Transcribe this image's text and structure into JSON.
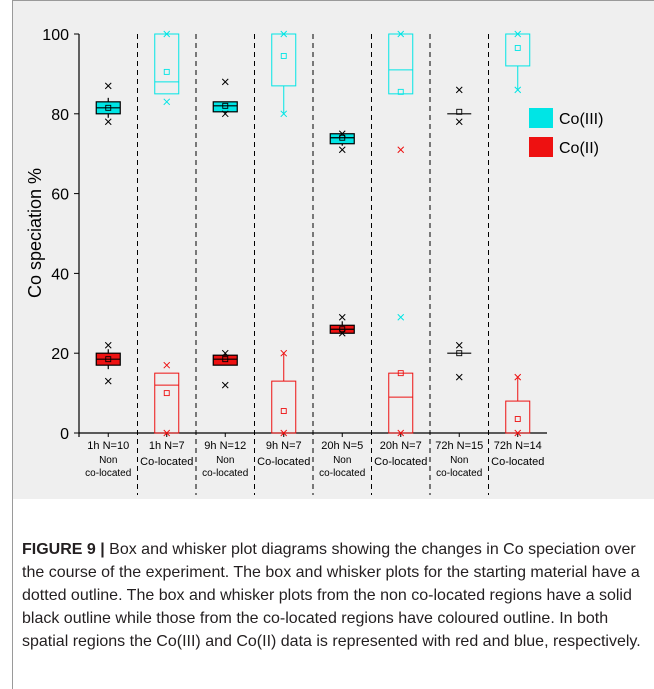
{
  "chart_data": {
    "type": "box",
    "ylabel": "Co speciation %",
    "ylim": [
      0,
      100
    ],
    "yticks": [
      0,
      20,
      40,
      60,
      80,
      100
    ],
    "grid": false,
    "legend_position": "right",
    "legend": [
      {
        "name": "Co(III)",
        "color": "#00e5e5"
      },
      {
        "name": "Co(II)",
        "color": "#ee1111"
      }
    ],
    "categories": [
      {
        "label1": "1h N=10",
        "label2": "Non",
        "label3": "co-located"
      },
      {
        "label1": "1h N=7",
        "label2": "Co-located",
        "label3": ""
      },
      {
        "label1": "9h N=12",
        "label2": "Non",
        "label3": "co-located"
      },
      {
        "label1": "9h N=7",
        "label2": "Co-located",
        "label3": ""
      },
      {
        "label1": "20h N=5",
        "label2": "Non",
        "label3": "co-located"
      },
      {
        "label1": "20h N=7",
        "label2": "Co-located",
        "label3": ""
      },
      {
        "label1": "72h N=15",
        "label2": "Non",
        "label3": "co-located"
      },
      {
        "label1": "72h N=14",
        "label2": "Co-located",
        "label3": ""
      }
    ],
    "boxes": [
      {
        "category": 0,
        "species": "Co(II)",
        "style": "filled",
        "color": "#ee1111",
        "q1": 17,
        "median": 18.5,
        "q3": 20,
        "whisker_low": 16,
        "whisker_high": 21,
        "mean": 18.5,
        "extremes": [
          13,
          22
        ]
      },
      {
        "category": 0,
        "species": "Co(III)",
        "style": "filled",
        "color": "#00e5e5",
        "q1": 80,
        "median": 81.5,
        "q3": 83,
        "whisker_low": 79,
        "whisker_high": 84,
        "mean": 81.5,
        "extremes": [
          78,
          87
        ]
      },
      {
        "category": 1,
        "species": "Co(II)",
        "style": "outline",
        "color": "#ee1111",
        "q1": 0,
        "median": 12,
        "q3": 15,
        "whisker_low": 0,
        "whisker_high": 15,
        "mean": 10,
        "extremes": [
          0,
          17
        ]
      },
      {
        "category": 1,
        "species": "Co(III)",
        "style": "outline",
        "color": "#00e5e5",
        "q1": 85,
        "median": 88,
        "q3": 100,
        "whisker_low": 85,
        "whisker_high": 100,
        "mean": 90.5,
        "extremes": [
          83,
          100
        ]
      },
      {
        "category": 2,
        "species": "Co(II)",
        "style": "filled",
        "color": "#ee1111",
        "q1": 17,
        "median": 18.5,
        "q3": 19.5,
        "whisker_low": 17,
        "whisker_high": 20,
        "mean": 18.5,
        "extremes": [
          12,
          20
        ]
      },
      {
        "category": 2,
        "species": "Co(III)",
        "style": "filled",
        "color": "#00e5e5",
        "q1": 80.5,
        "median": 82,
        "q3": 83,
        "whisker_low": 80,
        "whisker_high": 83,
        "mean": 82,
        "extremes": [
          80,
          88
        ]
      },
      {
        "category": 3,
        "species": "Co(II)",
        "style": "outline",
        "color": "#ee1111",
        "q1": 0,
        "median": 0,
        "q3": 13,
        "whisker_low": 0,
        "whisker_high": 20,
        "mean": 5.5,
        "extremes": [
          0,
          20
        ]
      },
      {
        "category": 3,
        "species": "Co(III)",
        "style": "outline",
        "color": "#00e5e5",
        "q1": 87,
        "median": 100,
        "q3": 100,
        "whisker_low": 80,
        "whisker_high": 100,
        "mean": 94.5,
        "extremes": [
          80,
          100
        ]
      },
      {
        "category": 4,
        "species": "Co(II)",
        "style": "filled",
        "color": "#ee1111",
        "q1": 25,
        "median": 26,
        "q3": 27,
        "whisker_low": 25,
        "whisker_high": 28,
        "mean": 26,
        "extremes": [
          25,
          29
        ]
      },
      {
        "category": 4,
        "species": "Co(III)",
        "style": "filled",
        "color": "#00e5e5",
        "q1": 72.5,
        "median": 74,
        "q3": 75,
        "whisker_low": 72,
        "whisker_high": 75,
        "mean": 74,
        "extremes": [
          71,
          75
        ]
      },
      {
        "category": 5,
        "species": "Co(II)",
        "style": "outline",
        "color": "#ee1111",
        "q1": 0,
        "median": 9,
        "q3": 15,
        "whisker_low": 0,
        "whisker_high": 15,
        "mean": 15,
        "extremes": [
          0,
          71
        ]
      },
      {
        "category": 5,
        "species": "Co(III)",
        "style": "outline",
        "color": "#00e5e5",
        "q1": 85,
        "median": 91,
        "q3": 100,
        "whisker_low": 85,
        "whisker_high": 100,
        "mean": 85.5,
        "extremes": [
          29,
          100
        ]
      },
      {
        "category": 6,
        "species": "Co(II)",
        "style": "black",
        "color": "#000000",
        "q1": 20,
        "median": 20,
        "q3": 20,
        "whisker_low": 20,
        "whisker_high": 20,
        "mean": 20,
        "extremes": [
          14,
          22
        ]
      },
      {
        "category": 6,
        "species": "Co(III)",
        "style": "black",
        "color": "#000000",
        "q1": 80,
        "median": 80,
        "q3": 80,
        "whisker_low": 80,
        "whisker_high": 80,
        "mean": 80.5,
        "extremes": [
          78,
          86
        ]
      },
      {
        "category": 7,
        "species": "Co(II)",
        "style": "outline",
        "color": "#ee1111",
        "q1": 0,
        "median": 0,
        "q3": 8,
        "whisker_low": 0,
        "whisker_high": 14,
        "mean": 3.5,
        "extremes": [
          0,
          14
        ]
      },
      {
        "category": 7,
        "species": "Co(III)",
        "style": "outline",
        "color": "#00e5e5",
        "q1": 92,
        "median": 100,
        "q3": 100,
        "whisker_low": 86,
        "whisker_high": 100,
        "mean": 96.5,
        "extremes": [
          86,
          100
        ]
      }
    ]
  },
  "caption": {
    "label": "FIGURE 9 |",
    "text": " Box and whisker plot diagrams showing the changes in Co speciation over the course of the experiment. The box and whisker plots for the starting material have a dotted outline. The box and whisker plots from the non co-located regions have a solid black outline while those from the co-located regions have coloured outline. In both spatial regions the Co(III) and Co(II) data is represented with red and blue, respectively."
  }
}
